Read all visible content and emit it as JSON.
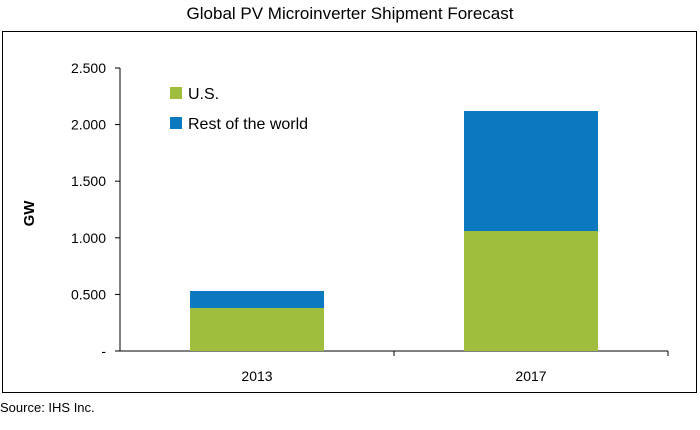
{
  "chart_data": {
    "type": "bar",
    "stacked": true,
    "title": "Global PV Microinverter Shipment Forecast",
    "ylabel": "GW",
    "xlabel": "",
    "categories": [
      "2013",
      "2017"
    ],
    "series": [
      {
        "name": "U.S.",
        "values": [
          0.38,
          1.06
        ],
        "color": "#9fbe3e"
      },
      {
        "name": "Rest of the world",
        "values": [
          0.15,
          1.06
        ],
        "color": "#0b78c0"
      }
    ],
    "ylim": [
      0,
      2.5
    ],
    "yticks": [
      0,
      0.5,
      1.0,
      1.5,
      2.0,
      2.5
    ],
    "ytick_labels": [
      "-",
      "0.500",
      "1.000",
      "1.500",
      "2.000",
      "2.500"
    ],
    "grid": false,
    "legend_position": "top-left",
    "source": "Source: IHS Inc."
  }
}
